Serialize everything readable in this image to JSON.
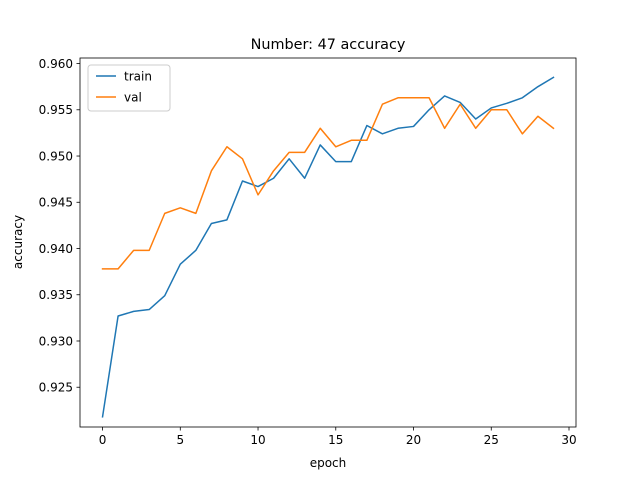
{
  "chart_data": {
    "type": "line",
    "title": "Number: 47 accuracy",
    "xlabel": "epoch",
    "ylabel": "accuracy",
    "xlim": [
      -1.45,
      30.45
    ],
    "ylim": [
      0.9207,
      0.9606
    ],
    "xticks": [
      0,
      5,
      10,
      15,
      20,
      25,
      30
    ],
    "xtick_labels": [
      "0",
      "5",
      "10",
      "15",
      "20",
      "25",
      "30"
    ],
    "yticks": [
      0.925,
      0.93,
      0.935,
      0.94,
      0.945,
      0.95,
      0.955,
      0.96
    ],
    "ytick_labels": [
      "0.925",
      "0.930",
      "0.935",
      "0.940",
      "0.945",
      "0.950",
      "0.955",
      "0.960"
    ],
    "grid": false,
    "legend_position": "top-left",
    "x": [
      0,
      1,
      2,
      3,
      4,
      5,
      6,
      7,
      8,
      9,
      10,
      11,
      12,
      13,
      14,
      15,
      16,
      17,
      18,
      19,
      20,
      21,
      22,
      23,
      24,
      25,
      26,
      27,
      28,
      29
    ],
    "series": [
      {
        "name": "train",
        "color": "#1f77b4",
        "values": [
          0.9218,
          0.9327,
          0.9332,
          0.9334,
          0.9349,
          0.9383,
          0.9398,
          0.9427,
          0.9431,
          0.9473,
          0.9467,
          0.9476,
          0.9497,
          0.9476,
          0.9512,
          0.9494,
          0.9494,
          0.9533,
          0.9524,
          0.953,
          0.9532,
          0.955,
          0.9565,
          0.9558,
          0.954,
          0.9552,
          0.9557,
          0.9563,
          0.9575,
          0.9585
        ]
      },
      {
        "name": "val",
        "color": "#ff7f0e",
        "values": [
          0.9378,
          0.9378,
          0.9398,
          0.9398,
          0.9438,
          0.9444,
          0.9438,
          0.9484,
          0.951,
          0.9497,
          0.9458,
          0.9484,
          0.9504,
          0.9504,
          0.953,
          0.951,
          0.9517,
          0.9517,
          0.9556,
          0.9563,
          0.9563,
          0.9563,
          0.953,
          0.9556,
          0.953,
          0.955,
          0.955,
          0.9524,
          0.9543,
          0.953
        ]
      }
    ]
  }
}
